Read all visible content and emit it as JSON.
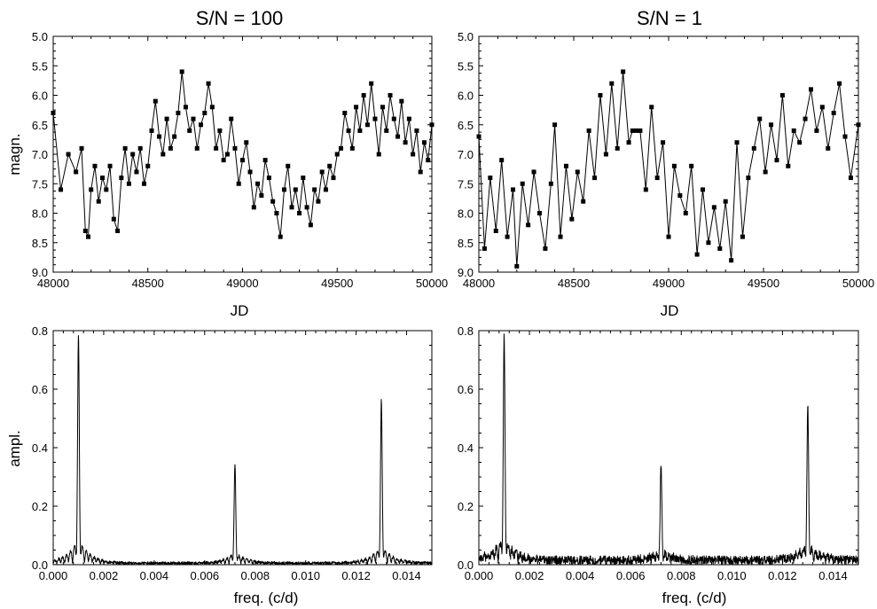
{
  "chart_data": [
    {
      "type": "line",
      "title": "S/N = 100",
      "xlabel": "JD",
      "ylabel": "magn.",
      "xlim": [
        48000,
        50000
      ],
      "ylim": [
        9.0,
        5.0
      ],
      "y_inverted": true,
      "xticks": [
        48000,
        48500,
        49000,
        49500,
        50000
      ],
      "xtick_labels": [
        "48000",
        "48500",
        "49000",
        "49500",
        "50000"
      ],
      "yticks": [
        5.0,
        5.5,
        6.0,
        6.5,
        7.0,
        7.5,
        8.0,
        8.5,
        9.0
      ],
      "ytick_labels": [
        "5.0",
        "5.5",
        "6.0",
        "6.5",
        "7.0",
        "7.5",
        "8.0",
        "8.5",
        "9.0"
      ],
      "markers": "square",
      "series": [
        {
          "x": [
            48000,
            48040,
            48080,
            48120,
            48150,
            48170,
            48185,
            48200,
            48220,
            48240,
            48260,
            48280,
            48300,
            48320,
            48340,
            48360,
            48380,
            48400,
            48420,
            48440,
            48460,
            48480,
            48500,
            48520,
            48540,
            48560,
            48580,
            48600,
            48620,
            48640,
            48660,
            48680,
            48700,
            48720,
            48740,
            48760,
            48780,
            48800,
            48820,
            48840,
            48860,
            48880,
            48900,
            48920,
            48940,
            48960,
            48980,
            49000,
            49020,
            49040,
            49060,
            49080,
            49100,
            49120,
            49140,
            49160,
            49180,
            49200,
            49220,
            49240,
            49260,
            49280,
            49300,
            49320,
            49340,
            49360,
            49380,
            49400,
            49420,
            49440,
            49460,
            49480,
            49500,
            49520,
            49540,
            49560,
            49580,
            49600,
            49620,
            49640,
            49660,
            49680,
            49700,
            49720,
            49740,
            49760,
            49780,
            49800,
            49820,
            49840,
            49860,
            49880,
            49900,
            49920,
            49940,
            49960,
            49980,
            50000
          ],
          "y": [
            6.3,
            7.6,
            7.0,
            7.3,
            6.9,
            8.3,
            8.4,
            7.6,
            7.2,
            7.8,
            7.4,
            7.6,
            7.2,
            8.1,
            8.3,
            7.4,
            6.9,
            7.5,
            7.0,
            7.3,
            6.9,
            7.5,
            7.2,
            6.6,
            6.1,
            6.7,
            7.0,
            6.4,
            6.9,
            6.7,
            6.3,
            5.6,
            6.2,
            6.6,
            6.4,
            6.9,
            6.5,
            6.3,
            5.8,
            6.2,
            6.9,
            6.6,
            7.1,
            7.0,
            6.4,
            6.9,
            7.5,
            7.1,
            6.8,
            7.3,
            7.9,
            7.5,
            7.7,
            7.1,
            7.4,
            7.8,
            8.0,
            8.4,
            7.6,
            7.2,
            7.9,
            7.6,
            8.0,
            7.4,
            7.9,
            8.2,
            7.6,
            7.8,
            7.3,
            7.6,
            7.2,
            7.4,
            7.0,
            6.9,
            6.3,
            6.6,
            6.9,
            6.2,
            6.6,
            6.0,
            6.5,
            5.8,
            6.4,
            7.0,
            6.2,
            6.6,
            6.0,
            6.4,
            6.7,
            6.1,
            6.8,
            6.4,
            7.0,
            6.6,
            7.3,
            6.8,
            7.1,
            6.5
          ]
        }
      ]
    },
    {
      "type": "line",
      "title": "S/N = 1",
      "xlabel": "JD",
      "ylabel": "",
      "xlim": [
        48000,
        50000
      ],
      "ylim": [
        9.0,
        5.0
      ],
      "y_inverted": true,
      "xticks": [
        48000,
        48500,
        49000,
        49500,
        50000
      ],
      "xtick_labels": [
        "48000",
        "48500",
        "49000",
        "49500",
        "50000"
      ],
      "yticks": [
        5.0,
        5.5,
        6.0,
        6.5,
        7.0,
        7.5,
        8.0,
        8.5,
        9.0
      ],
      "ytick_labels": [
        "5.0",
        "5.5",
        "6.0",
        "6.5",
        "7.0",
        "7.5",
        "8.0",
        "8.5",
        "9.0"
      ],
      "markers": "square",
      "series": [
        {
          "x": [
            48000,
            48030,
            48060,
            48090,
            48120,
            48150,
            48180,
            48200,
            48230,
            48260,
            48290,
            48320,
            48350,
            48380,
            48400,
            48430,
            48460,
            48490,
            48520,
            48550,
            48580,
            48610,
            48640,
            48670,
            48700,
            48730,
            48760,
            48790,
            48810,
            48830,
            48850,
            48880,
            48910,
            48940,
            48970,
            49000,
            49030,
            49060,
            49090,
            49120,
            49150,
            49180,
            49210,
            49240,
            49270,
            49300,
            49330,
            49360,
            49390,
            49420,
            49450,
            49480,
            49510,
            49540,
            49570,
            49600,
            49630,
            49660,
            49690,
            49720,
            49750,
            49780,
            49810,
            49840,
            49870,
            49900,
            49930,
            49960,
            50000
          ],
          "y": [
            6.7,
            8.6,
            7.4,
            8.3,
            7.1,
            8.4,
            7.6,
            8.9,
            7.5,
            8.2,
            7.3,
            8.0,
            8.6,
            7.5,
            6.5,
            8.4,
            7.2,
            8.1,
            7.3,
            7.8,
            6.6,
            7.4,
            6.0,
            7.0,
            5.8,
            6.9,
            5.6,
            6.8,
            6.6,
            6.6,
            6.6,
            7.6,
            6.2,
            7.4,
            6.8,
            8.4,
            7.2,
            7.7,
            8.0,
            7.2,
            8.7,
            7.6,
            8.5,
            7.9,
            8.6,
            7.8,
            8.8,
            6.8,
            8.4,
            7.4,
            6.9,
            6.4,
            7.3,
            6.5,
            7.1,
            6.0,
            7.2,
            6.6,
            6.8,
            6.4,
            5.9,
            6.6,
            6.2,
            6.9,
            6.3,
            5.8,
            6.7,
            7.4,
            6.5
          ]
        }
      ]
    },
    {
      "type": "line",
      "title": "",
      "xlabel": "freq. (c/d)",
      "ylabel": "ampl.",
      "xlim": [
        0.0,
        0.015
      ],
      "ylim": [
        0.0,
        0.8
      ],
      "xticks": [
        0.0,
        0.002,
        0.004,
        0.006,
        0.008,
        0.01,
        0.012,
        0.014
      ],
      "xtick_labels": [
        "0.000",
        "0.002",
        "0.004",
        "0.006",
        "0.008",
        "0.010",
        "0.012",
        "0.014"
      ],
      "yticks": [
        0.0,
        0.2,
        0.4,
        0.6,
        0.8
      ],
      "ytick_labels": [
        "0.0",
        "0.2",
        "0.4",
        "0.6",
        "0.8"
      ],
      "peaks": [
        {
          "x": 0.001,
          "y": 0.7
        },
        {
          "x": 0.0072,
          "y": 0.3
        },
        {
          "x": 0.013,
          "y": 0.5
        }
      ],
      "noise_level": 0.01
    },
    {
      "type": "line",
      "title": "",
      "xlabel": "freq. (c/d)",
      "ylabel": "",
      "xlim": [
        0.0,
        0.015
      ],
      "ylim": [
        0.0,
        0.8
      ],
      "xticks": [
        0.0,
        0.002,
        0.004,
        0.006,
        0.008,
        0.01,
        0.012,
        0.014
      ],
      "xtick_labels": [
        "0.000",
        "0.002",
        "0.004",
        "0.006",
        "0.008",
        "0.010",
        "0.012",
        "0.014"
      ],
      "yticks": [
        0.0,
        0.2,
        0.4,
        0.6,
        0.8
      ],
      "ytick_labels": [
        "0.0",
        "0.2",
        "0.4",
        "0.6",
        "0.8"
      ],
      "peaks": [
        {
          "x": 0.001,
          "y": 0.69
        },
        {
          "x": 0.0072,
          "y": 0.29
        },
        {
          "x": 0.013,
          "y": 0.48
        }
      ],
      "noise_level": 0.03
    }
  ]
}
